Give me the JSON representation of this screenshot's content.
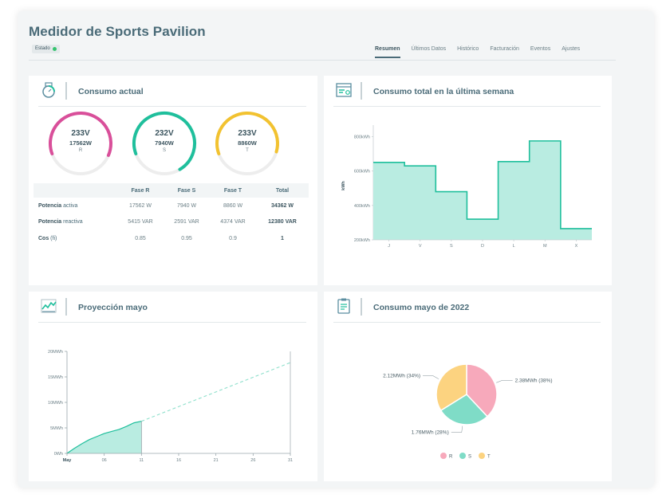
{
  "header": {
    "title": "Medidor de Sports Pavilion",
    "status_label": "Estado",
    "status_color": "#35c46f"
  },
  "tabs": [
    {
      "label": "Resumen",
      "active": true
    },
    {
      "label": "Últimos Datos",
      "active": false
    },
    {
      "label": "Histórico",
      "active": false
    },
    {
      "label": "Facturación",
      "active": false
    },
    {
      "label": "Eventos",
      "active": false
    },
    {
      "label": "Ajustes",
      "active": false
    }
  ],
  "consumo_actual": {
    "title": "Consumo actual",
    "icon": "meter-icon",
    "gauges": [
      {
        "voltage": "233V",
        "power": "17562W",
        "phase": "R",
        "color": "#d94f9a",
        "fill": 0.62
      },
      {
        "voltage": "232V",
        "power": "7940W",
        "phase": "S",
        "color": "#1fbf9c",
        "fill": 0.72
      },
      {
        "voltage": "233V",
        "power": "8860W",
        "phase": "T",
        "color": "#f2c230",
        "fill": 0.6
      }
    ],
    "table": {
      "headers": [
        "",
        "Fase R",
        "Fase S",
        "Fase T",
        "Total"
      ],
      "rows": [
        {
          "label_bold": "Potencia",
          "label_rest": " activa",
          "values": [
            "17562 W",
            "7940 W",
            "8860 W",
            "34362 W"
          ]
        },
        {
          "label_bold": "Potencia",
          "label_rest": " reactiva",
          "values": [
            "5415 VAR",
            "2591 VAR",
            "4374 VAR",
            "12380 VAR"
          ]
        },
        {
          "label_bold": "Cos",
          "label_rest": " (fi)",
          "values": [
            "0.85",
            "0.95",
            "0.9",
            "1"
          ]
        }
      ]
    }
  },
  "semana": {
    "title": "Consumo total en la última semana",
    "icon": "calendar-chart-icon",
    "chart_data": {
      "type": "area",
      "step": true,
      "categories": [
        "J",
        "V",
        "S",
        "D",
        "L",
        "M",
        "X"
      ],
      "values": [
        650,
        630,
        480,
        320,
        655,
        775,
        265
      ],
      "ylabel": "kWh",
      "yticks": [
        "800kWh",
        "600kWh",
        "400kWh",
        "200kWh"
      ],
      "ytick_values": [
        800,
        600,
        400,
        200
      ],
      "ylim": [
        200,
        830
      ],
      "fill_color": "#b9ece1",
      "line_color": "#1fbf9c"
    }
  },
  "proyeccion": {
    "title": "Proyección mayo",
    "icon": "trend-chart-icon",
    "chart_data": {
      "type": "area",
      "yticks": [
        "20MWh",
        "15MWh",
        "10MWh",
        "5MWh",
        "0Wh"
      ],
      "ytick_values": [
        20,
        15,
        10,
        5,
        0
      ],
      "ylim": [
        0,
        20
      ],
      "xticks": [
        "May",
        "06",
        "11",
        "16",
        "21",
        "26",
        "31"
      ],
      "xtick_values": [
        1,
        6,
        11,
        16,
        21,
        26,
        31
      ],
      "actual": {
        "x": [
          1,
          2,
          3,
          4,
          5,
          6,
          7,
          8,
          9,
          10,
          11
        ],
        "y": [
          0,
          1.0,
          1.9,
          2.7,
          3.3,
          3.9,
          4.3,
          4.7,
          5.3,
          6.0,
          6.3
        ]
      },
      "projection": {
        "x": [
          11,
          31
        ],
        "y": [
          6.3,
          17.8
        ]
      },
      "fill_color": "#b9ece1",
      "line_color": "#1fbf9c"
    }
  },
  "mayo": {
    "title": "Consumo mayo de 2022",
    "icon": "clipboard-icon",
    "chart_data": {
      "type": "pie",
      "slices": [
        {
          "label": "R",
          "value": 2.38,
          "text": "2.38MWh (38%)",
          "color": "#f7a9bb"
        },
        {
          "label": "S",
          "value": 1.76,
          "text": "1.76MWh (28%)",
          "color": "#7fdcc7"
        },
        {
          "label": "T",
          "value": 2.12,
          "text": "2.12MWh (34%)",
          "color": "#fcd380"
        }
      ],
      "legend": [
        "R",
        "S",
        "T"
      ],
      "legend_position": "bottom"
    }
  }
}
